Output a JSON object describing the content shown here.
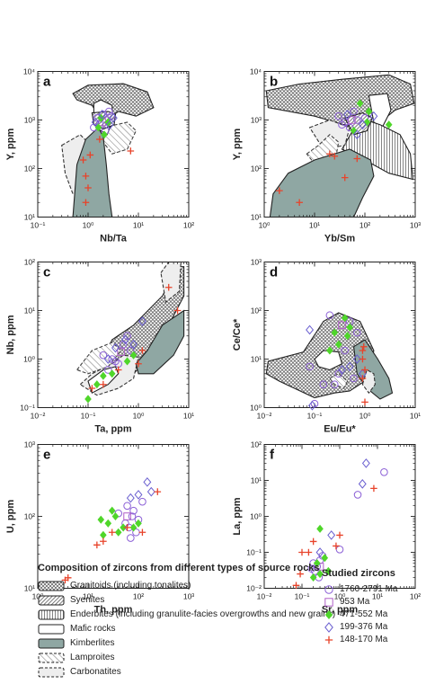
{
  "panels": [
    {
      "id": "a",
      "label": "a",
      "xlabel": "Nb/Ta",
      "ylabel": "Y, ppm",
      "xlim": [
        0.1,
        100
      ],
      "ylim": [
        10,
        10000
      ],
      "xlog": true,
      "ylog": true,
      "xticks": [
        0.1,
        1,
        10,
        100
      ],
      "xtick_labels": [
        "10⁻¹",
        "10⁰",
        "10¹",
        "10²"
      ],
      "yticks": [
        10,
        100,
        1000,
        10000
      ],
      "ytick_labels": [
        "10¹",
        "10²",
        "10³",
        "10⁴"
      ]
    },
    {
      "id": "b",
      "label": "b",
      "xlabel": "Yb/Sm",
      "ylabel": "Y, ppm",
      "xlim": [
        1,
        1000
      ],
      "ylim": [
        10,
        10000
      ],
      "xlog": true,
      "ylog": true,
      "xticks": [
        1,
        10,
        100,
        1000
      ],
      "xtick_labels": [
        "10⁰",
        "10¹",
        "10²",
        "10³"
      ],
      "yticks": [
        10,
        100,
        1000,
        10000
      ],
      "ytick_labels": [
        "10¹",
        "10²",
        "10³",
        "10⁴"
      ]
    },
    {
      "id": "c",
      "label": "c",
      "xlabel": "Ta, ppm",
      "ylabel": "Nb, ppm",
      "xlim": [
        0.01,
        10
      ],
      "ylim": [
        0.1,
        100
      ],
      "xlog": true,
      "ylog": true,
      "xticks": [
        0.01,
        0.1,
        1,
        10
      ],
      "xtick_labels": [
        "10⁻²",
        "10⁻¹",
        "10⁰",
        "10¹"
      ],
      "yticks": [
        0.1,
        1,
        10,
        100
      ],
      "ytick_labels": [
        "10⁻¹",
        "10⁰",
        "10¹",
        "10²"
      ]
    },
    {
      "id": "d",
      "label": "d",
      "xlabel": "Eu/Eu*",
      "ylabel": "Ce/Ce*",
      "xlim": [
        0.01,
        10
      ],
      "ylim": [
        1,
        1000
      ],
      "xlog": true,
      "ylog": true,
      "xticks": [
        0.01,
        0.1,
        1,
        10
      ],
      "xtick_labels": [
        "10⁻²",
        "10⁻¹",
        "10⁰",
        "10¹"
      ],
      "yticks": [
        1,
        10,
        100,
        1000
      ],
      "ytick_labels": [
        "10⁰",
        "10¹",
        "10²",
        "10³"
      ]
    },
    {
      "id": "e",
      "label": "e",
      "xlabel": "Th, ppm",
      "ylabel": "U, ppm",
      "xlim": [
        1,
        1000
      ],
      "ylim": [
        10,
        1000
      ],
      "xlog": true,
      "ylog": true,
      "xticks": [
        1,
        10,
        100,
        1000
      ],
      "xtick_labels": [
        "10⁰",
        "10¹",
        "10²",
        "10³"
      ],
      "yticks": [
        10,
        100,
        1000
      ],
      "ytick_labels": [
        "10¹",
        "10²",
        "10³"
      ]
    },
    {
      "id": "f",
      "label": "f",
      "xlabel": "Sr, ppm",
      "ylabel": "La, ppm",
      "xlim": [
        0.01,
        100
      ],
      "ylim": [
        0.01,
        100
      ],
      "xlog": true,
      "ylog": true,
      "xticks": [
        0.01,
        0.1,
        1,
        10,
        100
      ],
      "xtick_labels": [
        "10⁻²",
        "10⁻¹",
        "10⁰",
        "10¹",
        "10²"
      ],
      "yticks": [
        0.01,
        0.1,
        1,
        10,
        100
      ],
      "ytick_labels": [
        "10⁻²",
        "10⁻¹",
        "10⁰",
        "10¹",
        "10²"
      ]
    }
  ],
  "legend": {
    "source_title": "Composition of zircons from different types of source rocks",
    "source_items": [
      {
        "label": "Granitoids (including tonalites)",
        "fill": "crosshatch"
      },
      {
        "label": "Syenites",
        "fill": "dense-diagonal"
      },
      {
        "label": "Enderbites (including granulite-facies overgrowths and new grains)",
        "fill": "vertical-lines"
      },
      {
        "label": "Mafic rocks",
        "fill": "white"
      },
      {
        "label": "Kimberlites",
        "fill": "solid-gray"
      },
      {
        "label": "Lamproites",
        "fill": "sparse-diagonal"
      },
      {
        "label": "Carbonatites",
        "fill": "dashed-outline"
      }
    ],
    "studied_title": "Studied zircons",
    "studied_items": [
      {
        "label": "1760-2791 Ma",
        "marker": "open-circle",
        "color": "#8b5fd6"
      },
      {
        "label": "953 Ma",
        "marker": "open-square",
        "color": "#b05fc8"
      },
      {
        "label": "471-552 Ma",
        "marker": "filled-diamond",
        "color": "#4fd62a"
      },
      {
        "label": "199-376 Ma",
        "marker": "open-diamond",
        "color": "#6a5fd0"
      },
      {
        "label": "148-170 Ma",
        "marker": "plus",
        "color": "#e8432a"
      }
    ]
  },
  "chart_data": [
    {
      "panel": "a",
      "type": "scatter",
      "xlabel": "Nb/Ta",
      "ylabel": "Y, ppm",
      "series": [
        {
          "name": "1760-2791 Ma",
          "points": [
            [
              1.5,
              1100
            ],
            [
              1.7,
              800
            ],
            [
              2,
              1300
            ],
            [
              2.3,
              1000
            ],
            [
              2.6,
              1500
            ],
            [
              1.3,
              700
            ],
            [
              2.9,
              1200
            ],
            [
              2.2,
              600
            ]
          ]
        },
        {
          "name": "953 Ma",
          "points": [
            [
              1.9,
              900
            ]
          ]
        },
        {
          "name": "471-552 Ma",
          "points": [
            [
              1.6,
              700
            ],
            [
              2.1,
              500
            ],
            [
              2.5,
              900
            ],
            [
              1.8,
              1100
            ]
          ]
        },
        {
          "name": "199-376 Ma",
          "points": [
            [
              1.4,
              900
            ],
            [
              2.7,
              800
            ],
            [
              3.2,
              1100
            ],
            [
              1.9,
              1300
            ]
          ]
        },
        {
          "name": "148-170 Ma",
          "points": [
            [
              0.8,
              150
            ],
            [
              0.9,
              70
            ],
            [
              1.1,
              190
            ],
            [
              1,
              40
            ],
            [
              0.9,
              20
            ],
            [
              1.7,
              400
            ],
            [
              7,
              230
            ]
          ]
        }
      ]
    },
    {
      "panel": "b",
      "type": "scatter",
      "xlabel": "Yb/Sm",
      "ylabel": "Y, ppm",
      "series": [
        {
          "name": "1760-2791 Ma",
          "points": [
            [
              30,
              1200
            ],
            [
              40,
              900
            ],
            [
              60,
              1500
            ],
            [
              70,
              1000
            ],
            [
              50,
              700
            ],
            [
              100,
              1100
            ],
            [
              35,
              800
            ]
          ]
        },
        {
          "name": "953 Ma",
          "points": [
            [
              55,
              1000
            ]
          ]
        },
        {
          "name": "471-552 Ma",
          "points": [
            [
              80,
              2200
            ],
            [
              110,
              900
            ],
            [
              300,
              800
            ],
            [
              60,
              600
            ],
            [
              120,
              1500
            ]
          ]
        },
        {
          "name": "199-376 Ma",
          "points": [
            [
              45,
              1300
            ],
            [
              90,
              800
            ],
            [
              150,
              1200
            ],
            [
              70,
              500
            ]
          ]
        },
        {
          "name": "148-170 Ma",
          "points": [
            [
              2,
              35
            ],
            [
              5,
              20
            ],
            [
              20,
              200
            ],
            [
              25,
              180
            ],
            [
              40,
              65
            ],
            [
              70,
              160
            ]
          ]
        }
      ]
    },
    {
      "panel": "c",
      "type": "scatter",
      "xlabel": "Ta, ppm",
      "ylabel": "Nb, ppm",
      "series": [
        {
          "name": "1760-2791 Ma",
          "points": [
            [
              0.2,
              1.2
            ],
            [
              0.3,
              1
            ],
            [
              0.5,
              2
            ],
            [
              0.6,
              3
            ],
            [
              0.4,
              0.8
            ],
            [
              0.25,
              0.6
            ],
            [
              0.7,
              1.5
            ],
            [
              0.35,
              0.9
            ]
          ]
        },
        {
          "name": "953 Ma",
          "points": [
            [
              0.45,
              1.4
            ]
          ]
        },
        {
          "name": "471-552 Ma",
          "points": [
            [
              0.1,
              0.15
            ],
            [
              0.15,
              0.3
            ],
            [
              0.3,
              0.5
            ],
            [
              0.6,
              0.9
            ],
            [
              0.8,
              1.2
            ],
            [
              0.2,
              0.45
            ]
          ]
        },
        {
          "name": "199-376 Ma",
          "points": [
            [
              0.35,
              1.7
            ],
            [
              0.55,
              2.5
            ],
            [
              1.2,
              6
            ],
            [
              0.8,
              2
            ],
            [
              0.25,
              1
            ]
          ]
        },
        {
          "name": "148-170 Ma",
          "points": [
            [
              0.12,
              0.25
            ],
            [
              0.2,
              0.3
            ],
            [
              0.4,
              0.6
            ],
            [
              1,
              0.8
            ],
            [
              1.2,
              1.5
            ],
            [
              4,
              30
            ],
            [
              6,
              10
            ]
          ]
        }
      ]
    },
    {
      "panel": "d",
      "type": "scatter",
      "xlabel": "Eu/Eu*",
      "ylabel": "Ce/Ce*",
      "series": [
        {
          "name": "1760-2791 Ma",
          "points": [
            [
              0.2,
              80
            ],
            [
              0.5,
              60
            ],
            [
              0.08,
              7
            ],
            [
              0.15,
              3
            ],
            [
              0.3,
              5
            ],
            [
              0.6,
              4
            ],
            [
              0.4,
              15
            ],
            [
              0.1,
              1.2
            ],
            [
              0.7,
              35
            ],
            [
              0.25,
              3
            ]
          ]
        },
        {
          "name": "953 Ma",
          "points": [
            [
              0.35,
              50
            ]
          ]
        },
        {
          "name": "471-552 Ma",
          "points": [
            [
              0.4,
              70
            ],
            [
              0.5,
              45
            ],
            [
              0.25,
              35
            ],
            [
              0.3,
              20
            ],
            [
              0.45,
              30
            ],
            [
              0.2,
              15
            ]
          ]
        },
        {
          "name": "199-376 Ma",
          "points": [
            [
              0.08,
              40
            ],
            [
              0.35,
              6
            ],
            [
              0.5,
              7
            ],
            [
              0.7,
              10
            ],
            [
              0.9,
              5
            ],
            [
              0.09,
              1.1
            ]
          ]
        },
        {
          "name": "148-170 Ma",
          "points": [
            [
              0.9,
              15
            ],
            [
              0.9,
              10
            ],
            [
              1,
              6
            ],
            [
              0.9,
              4
            ],
            [
              1,
              1.3
            ],
            [
              0.95,
              18
            ]
          ]
        }
      ]
    },
    {
      "panel": "e",
      "type": "scatter",
      "xlabel": "Th, ppm",
      "ylabel": "U, ppm",
      "series": [
        {
          "name": "1760-2791 Ma",
          "points": [
            [
              60,
              140
            ],
            [
              80,
              120
            ],
            [
              100,
              90
            ],
            [
              40,
              110
            ],
            [
              70,
              50
            ],
            [
              120,
              160
            ],
            [
              55,
              80
            ],
            [
              90,
              60
            ],
            [
              75,
              100
            ],
            [
              65,
              70
            ]
          ]
        },
        {
          "name": "953 Ma",
          "points": [
            [
              60,
              100
            ]
          ]
        },
        {
          "name": "471-552 Ma",
          "points": [
            [
              18,
              90
            ],
            [
              25,
              80
            ],
            [
              35,
              100
            ],
            [
              50,
              70
            ],
            [
              20,
              55
            ],
            [
              40,
              60
            ],
            [
              100,
              80
            ],
            [
              30,
              120
            ],
            [
              80,
              70
            ]
          ]
        },
        {
          "name": "199-376 Ma",
          "points": [
            [
              150,
              300
            ],
            [
              180,
              220
            ],
            [
              100,
              200
            ],
            [
              70,
              180
            ]
          ]
        },
        {
          "name": "148-170 Ma",
          "points": [
            [
              3.5,
              13
            ],
            [
              4,
              14
            ],
            [
              30,
              60
            ],
            [
              20,
              45
            ],
            [
              15,
              40
            ],
            [
              240,
              220
            ],
            [
              60,
              70
            ],
            [
              120,
              60
            ]
          ]
        }
      ]
    },
    {
      "panel": "f",
      "type": "scatter",
      "xlabel": "Sr, ppm",
      "ylabel": "La, ppm",
      "series": [
        {
          "name": "1760-2791 Ma",
          "points": [
            [
              15,
              17
            ],
            [
              3,
              4
            ],
            [
              1,
              0.12
            ],
            [
              0.2,
              0.05
            ],
            [
              0.25,
              0.04
            ],
            [
              0.3,
              0.06
            ],
            [
              0.22,
              0.03
            ],
            [
              0.18,
              0.035
            ],
            [
              0.35,
              0.08
            ],
            [
              0.28,
              0.02
            ]
          ]
        },
        {
          "name": "953 Ma",
          "points": [
            [
              0.3,
              0.04
            ]
          ]
        },
        {
          "name": "471-552 Ma",
          "points": [
            [
              0.2,
              0.02
            ],
            [
              0.3,
              0.025
            ],
            [
              0.25,
              0.05
            ],
            [
              0.5,
              0.03
            ],
            [
              0.4,
              0.07
            ],
            [
              0.3,
              0.45
            ]
          ]
        },
        {
          "name": "199-376 Ma",
          "points": [
            [
              5,
              30
            ],
            [
              4,
              8
            ],
            [
              0.6,
              0.3
            ],
            [
              0.3,
              0.1
            ]
          ]
        },
        {
          "name": "148-170 Ma",
          "points": [
            [
              0.07,
              0.012
            ],
            [
              0.09,
              0.025
            ],
            [
              0.1,
              0.1
            ],
            [
              0.2,
              0.2
            ],
            [
              0.15,
              0.1
            ],
            [
              1,
              0.3
            ],
            [
              0.8,
              0.15
            ],
            [
              8,
              6
            ]
          ]
        }
      ]
    }
  ]
}
